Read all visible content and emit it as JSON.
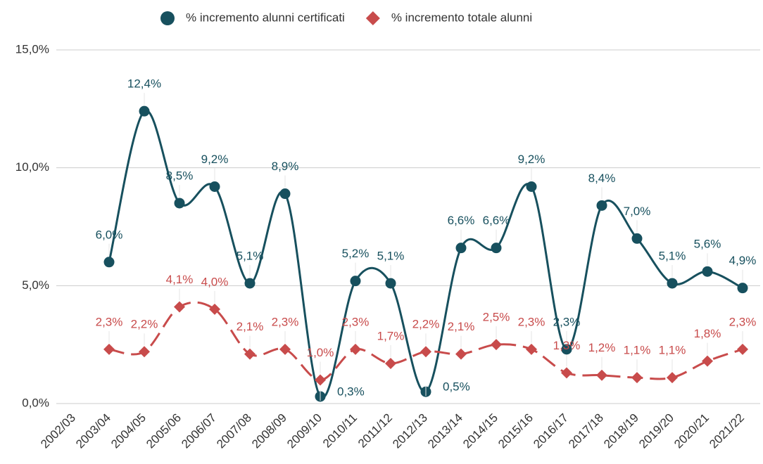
{
  "chart_data": {
    "type": "line",
    "categories": [
      "2002/03",
      "2003/04",
      "2004/05",
      "2005/06",
      "2006/07",
      "2007/08",
      "2008/09",
      "2009/10",
      "2010/11",
      "2011/12",
      "2012/13",
      "2013/14",
      "2014/15",
      "2015/16",
      "2016/17",
      "2017/18",
      "2018/19",
      "2019/20",
      "2020/21",
      "2021/22"
    ],
    "series": [
      {
        "name": "% incremento alunni certificati",
        "color": "#17505e",
        "marker": "circle",
        "values": [
          null,
          6.0,
          12.4,
          8.5,
          9.2,
          5.1,
          8.9,
          0.3,
          5.2,
          5.1,
          0.5,
          6.6,
          6.6,
          9.2,
          2.3,
          8.4,
          7.0,
          5.1,
          5.6,
          4.9
        ],
        "value_labels": [
          null,
          "6,0%",
          "12,4%",
          "8,5%",
          "9,2%",
          "5,1%",
          "8,9%",
          "0,3%",
          "5,2%",
          "5,1%",
          "0,5%",
          "6,6%",
          "6,6%",
          "9,2%",
          "2,3%",
          "8,4%",
          "7,0%",
          "5,1%",
          "5,6%",
          "4,9%"
        ]
      },
      {
        "name": "% incremento totale alunni",
        "color": "#c84b4b",
        "marker": "diamond",
        "dashed": true,
        "values": [
          null,
          2.3,
          2.2,
          4.1,
          4.0,
          2.1,
          2.3,
          1.0,
          2.3,
          1.7,
          2.2,
          2.1,
          2.5,
          2.3,
          1.3,
          1.2,
          1.1,
          1.1,
          1.8,
          2.3
        ],
        "value_labels": [
          null,
          "2,3%",
          "2,2%",
          "4,1%",
          "4,0%",
          "2,1%",
          "2,3%",
          "1,0%",
          "2,3%",
          "1,7%",
          "2,2%",
          "2,1%",
          "2,5%",
          "2,3%",
          "1,3%",
          "1,2%",
          "1,1%",
          "1,1%",
          "1,8%",
          "2,3%"
        ]
      }
    ],
    "ylim": [
      0,
      15
    ],
    "yticks": [
      {
        "value": 0,
        "label": "0,0%"
      },
      {
        "value": 5,
        "label": "5,0%"
      },
      {
        "value": 10,
        "label": "10,0%"
      },
      {
        "value": 15,
        "label": "15,0%"
      }
    ],
    "grid": true,
    "legend": "top"
  }
}
